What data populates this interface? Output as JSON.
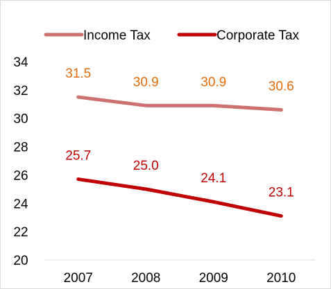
{
  "chart_data": {
    "type": "line",
    "title": "",
    "xlabel": "",
    "ylabel": "",
    "categories": [
      "2007",
      "2008",
      "2009",
      "2010"
    ],
    "ylim": [
      20,
      34
    ],
    "yticks": [
      20,
      22,
      24,
      26,
      28,
      30,
      32,
      34
    ],
    "grid": false,
    "legend_position": "top",
    "series": [
      {
        "name": "Income Tax",
        "values": [
          31.5,
          30.9,
          30.9,
          30.6
        ],
        "labels": [
          "31.5",
          "30.9",
          "30.9",
          "30.6"
        ],
        "color": "#cd7070",
        "label_color": "#e46c0a"
      },
      {
        "name": "Corporate Tax",
        "values": [
          25.7,
          25.0,
          24.1,
          23.1
        ],
        "labels": [
          "25.7",
          "25.0",
          "24.1",
          "23.1"
        ],
        "color": "#c00000",
        "label_color": "#c00000"
      }
    ]
  }
}
